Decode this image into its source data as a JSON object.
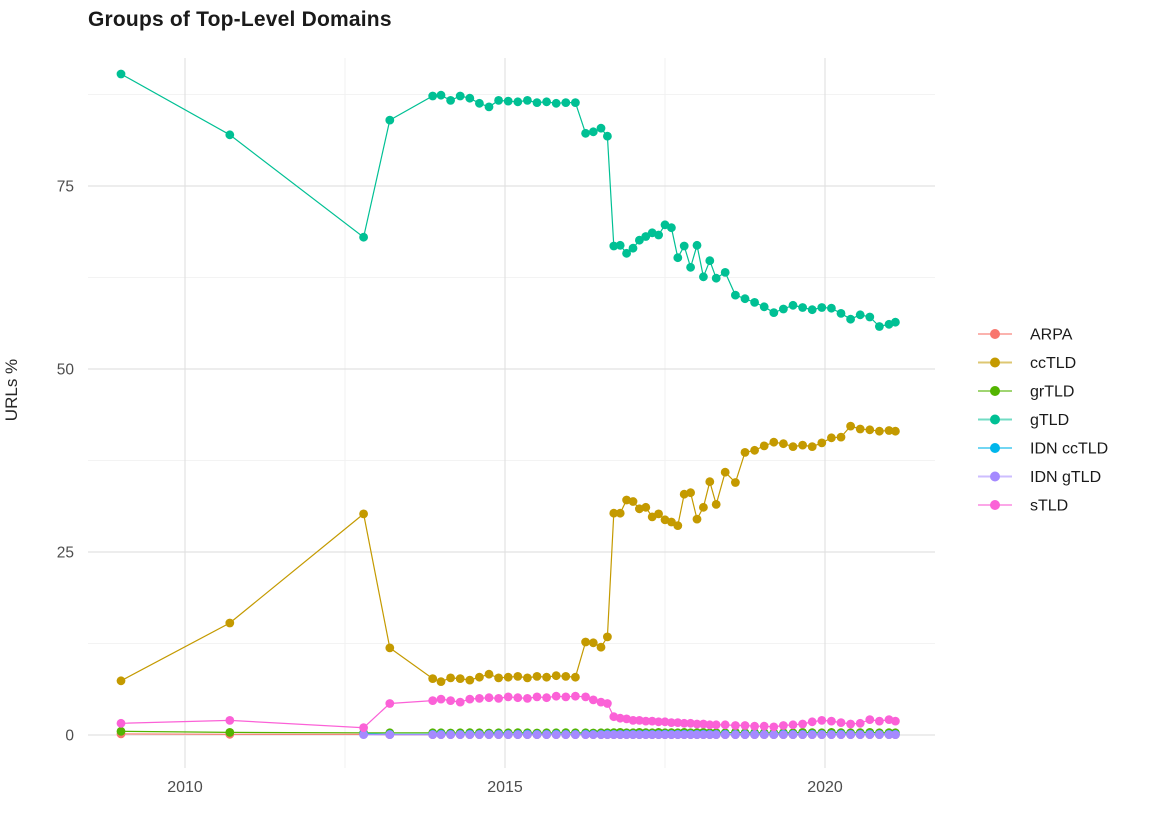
{
  "title": "Groups of Top-Level Domains",
  "axes": {
    "y_label": "URLs %",
    "y_ticks": [
      0,
      25,
      50,
      75
    ],
    "y_tick_labels": [
      "0",
      "25",
      "50",
      "75"
    ],
    "x_ticks": [
      2010,
      2015,
      2020
    ],
    "x_tick_labels": [
      "2010",
      "2015",
      "2020"
    ]
  },
  "legend": {
    "position": "right",
    "items": [
      {
        "label": "ARPA",
        "color": "#F8766D"
      },
      {
        "label": "ccTLD",
        "color": "#C49A00"
      },
      {
        "label": "grTLD",
        "color": "#53B400"
      },
      {
        "label": "gTLD",
        "color": "#00C094"
      },
      {
        "label": "IDN ccTLD",
        "color": "#00B6EB"
      },
      {
        "label": "IDN gTLD",
        "color": "#A58AFF"
      },
      {
        "label": "sTLD",
        "color": "#FB61D7"
      }
    ]
  },
  "chart_data": {
    "type": "scatter",
    "title": "Groups of Top-Level Domains",
    "xlabel": "",
    "ylabel": "URLs %",
    "xlim": [
      2008.48,
      2021.72
    ],
    "ylim": [
      -4.5,
      92.5
    ],
    "grid": "on",
    "legend_position": "right",
    "x": [
      2009.0,
      2010.7,
      2012.79,
      2013.2,
      2013.87,
      2014.0,
      2014.15,
      2014.3,
      2014.45,
      2014.6,
      2014.75,
      2014.9,
      2015.05,
      2015.2,
      2015.35,
      2015.5,
      2015.65,
      2015.8,
      2015.95,
      2016.1,
      2016.26,
      2016.38,
      2016.5,
      2016.6,
      2016.7,
      2016.8,
      2016.9,
      2017.0,
      2017.1,
      2017.2,
      2017.3,
      2017.4,
      2017.5,
      2017.6,
      2017.7,
      2017.8,
      2017.9,
      2018.0,
      2018.1,
      2018.2,
      2018.3,
      2018.44,
      2018.6,
      2018.75,
      2018.9,
      2019.05,
      2019.2,
      2019.35,
      2019.5,
      2019.65,
      2019.8,
      2019.95,
      2020.1,
      2020.25,
      2020.4,
      2020.55,
      2020.7,
      2020.85,
      2021.0,
      2021.1
    ],
    "series": [
      {
        "name": "ARPA",
        "color": "#F8766D",
        "values": [
          0.15,
          0.1,
          0.1,
          0.05,
          0.05,
          0.05,
          0.05,
          0.05,
          0.05,
          0.05,
          0.05,
          0.05,
          0.05,
          0.05,
          0.05,
          0.05,
          0.05,
          0.05,
          0.05,
          0.05,
          0.05,
          0.05,
          0.05,
          0.05,
          0.05,
          0.05,
          0.05,
          0.05,
          0.05,
          0.05,
          0.05,
          0.05,
          0.05,
          0.05,
          0.05,
          0.05,
          0.05,
          0.05,
          0.05,
          0.05,
          0.05,
          0.05,
          0.05,
          0.05,
          0.05,
          0.05,
          0.05,
          0.05,
          0.05,
          0.05,
          0.05,
          0.05,
          0.05,
          0.05,
          0.05,
          0.05,
          0.05,
          0.05,
          0.05,
          0.05
        ]
      },
      {
        "name": "ccTLD",
        "color": "#C49A00",
        "values": [
          7.4,
          15.3,
          30.2,
          11.9,
          7.7,
          7.3,
          7.8,
          7.7,
          7.5,
          7.9,
          8.3,
          7.8,
          7.9,
          8.0,
          7.8,
          8.0,
          7.9,
          8.1,
          8.0,
          7.9,
          12.7,
          12.6,
          12.0,
          13.4,
          30.3,
          30.3,
          32.1,
          31.9,
          30.9,
          31.1,
          29.8,
          30.2,
          29.4,
          29.1,
          28.6,
          32.9,
          33.1,
          29.5,
          31.1,
          34.6,
          31.5,
          35.9,
          34.5,
          38.6,
          38.9,
          39.5,
          40.0,
          39.8,
          39.4,
          39.6,
          39.4,
          39.9,
          40.6,
          40.7,
          42.2,
          41.8,
          41.7,
          41.5,
          41.6,
          41.5
        ]
      },
      {
        "name": "grTLD",
        "color": "#53B400",
        "values": [
          0.5,
          0.35,
          0.3,
          0.3,
          0.3,
          0.3,
          0.28,
          0.3,
          0.32,
          0.3,
          0.28,
          0.3,
          0.3,
          0.32,
          0.3,
          0.28,
          0.3,
          0.3,
          0.32,
          0.3,
          0.3,
          0.28,
          0.3,
          0.3,
          0.32,
          0.35,
          0.3,
          0.3,
          0.35,
          0.32,
          0.3,
          0.35,
          0.3,
          0.32,
          0.3,
          0.35,
          0.3,
          0.32,
          0.35,
          0.3,
          0.32,
          0.3,
          0.35,
          0.3,
          0.32,
          0.3,
          0.3,
          0.32,
          0.3,
          0.35,
          0.32,
          0.3,
          0.35,
          0.32,
          0.3,
          0.32,
          0.35,
          0.3,
          0.32,
          0.3
        ]
      },
      {
        "name": "gTLD",
        "color": "#00C094",
        "values": [
          90.3,
          82.0,
          68.0,
          84.0,
          87.3,
          87.4,
          86.7,
          87.3,
          87.0,
          86.3,
          85.8,
          86.7,
          86.6,
          86.5,
          86.7,
          86.4,
          86.5,
          86.3,
          86.4,
          86.4,
          82.2,
          82.4,
          82.9,
          81.8,
          66.8,
          66.9,
          65.8,
          66.5,
          67.6,
          68.1,
          68.6,
          68.3,
          69.7,
          69.3,
          65.2,
          66.8,
          63.9,
          66.9,
          62.6,
          64.8,
          62.4,
          63.2,
          60.1,
          59.6,
          59.1,
          58.5,
          57.7,
          58.2,
          58.7,
          58.4,
          58.1,
          58.4,
          58.3,
          57.6,
          56.8,
          57.4,
          57.1,
          55.8,
          56.1,
          56.4
        ]
      },
      {
        "name": "IDN ccTLD",
        "color": "#00B6EB",
        "values": [
          null,
          null,
          0.15,
          0.1,
          0.1,
          0.12,
          0.1,
          0.1,
          0.12,
          0.1,
          0.1,
          0.12,
          0.1,
          0.1,
          0.12,
          0.1,
          0.1,
          0.12,
          0.1,
          0.1,
          0.12,
          0.1,
          0.1,
          0.12,
          0.1,
          0.1,
          0.12,
          0.1,
          0.1,
          0.12,
          0.1,
          0.1,
          0.12,
          0.1,
          0.1,
          0.12,
          0.1,
          0.1,
          0.12,
          0.1,
          0.1,
          0.12,
          0.1,
          0.1,
          0.12,
          0.1,
          0.1,
          0.12,
          0.1,
          0.1,
          0.12,
          0.1,
          0.1,
          0.12,
          0.1,
          0.1,
          0.12,
          0.1,
          0.1,
          0.1
        ]
      },
      {
        "name": "IDN gTLD",
        "color": "#A58AFF",
        "values": [
          null,
          null,
          0.05,
          0.05,
          0.05,
          0.05,
          0.05,
          0.05,
          0.05,
          0.05,
          0.05,
          0.05,
          0.05,
          0.05,
          0.05,
          0.05,
          0.05,
          0.05,
          0.05,
          0.05,
          0.05,
          0.05,
          0.05,
          0.05,
          0.05,
          0.05,
          0.05,
          0.05,
          0.05,
          0.05,
          0.05,
          0.05,
          0.05,
          0.05,
          0.05,
          0.05,
          0.05,
          0.05,
          0.05,
          0.05,
          0.05,
          0.05,
          0.05,
          0.05,
          0.05,
          0.05,
          0.05,
          0.05,
          0.05,
          0.05,
          0.05,
          0.05,
          0.05,
          0.05,
          0.05,
          0.05,
          0.05,
          0.05,
          0.05,
          0.05
        ]
      },
      {
        "name": "sTLD",
        "color": "#FB61D7",
        "values": [
          1.6,
          2.0,
          1.0,
          4.3,
          4.7,
          4.9,
          4.7,
          4.5,
          4.9,
          5.0,
          5.1,
          5.0,
          5.2,
          5.1,
          5.0,
          5.2,
          5.1,
          5.3,
          5.2,
          5.3,
          5.2,
          4.8,
          4.5,
          4.3,
          2.5,
          2.3,
          2.2,
          2.0,
          2.0,
          1.9,
          1.9,
          1.8,
          1.8,
          1.7,
          1.7,
          1.6,
          1.6,
          1.5,
          1.5,
          1.4,
          1.4,
          1.4,
          1.3,
          1.3,
          1.2,
          1.2,
          1.1,
          1.3,
          1.4,
          1.5,
          1.8,
          2.0,
          1.9,
          1.7,
          1.5,
          1.6,
          2.1,
          1.9,
          2.1,
          1.9
        ]
      }
    ]
  }
}
